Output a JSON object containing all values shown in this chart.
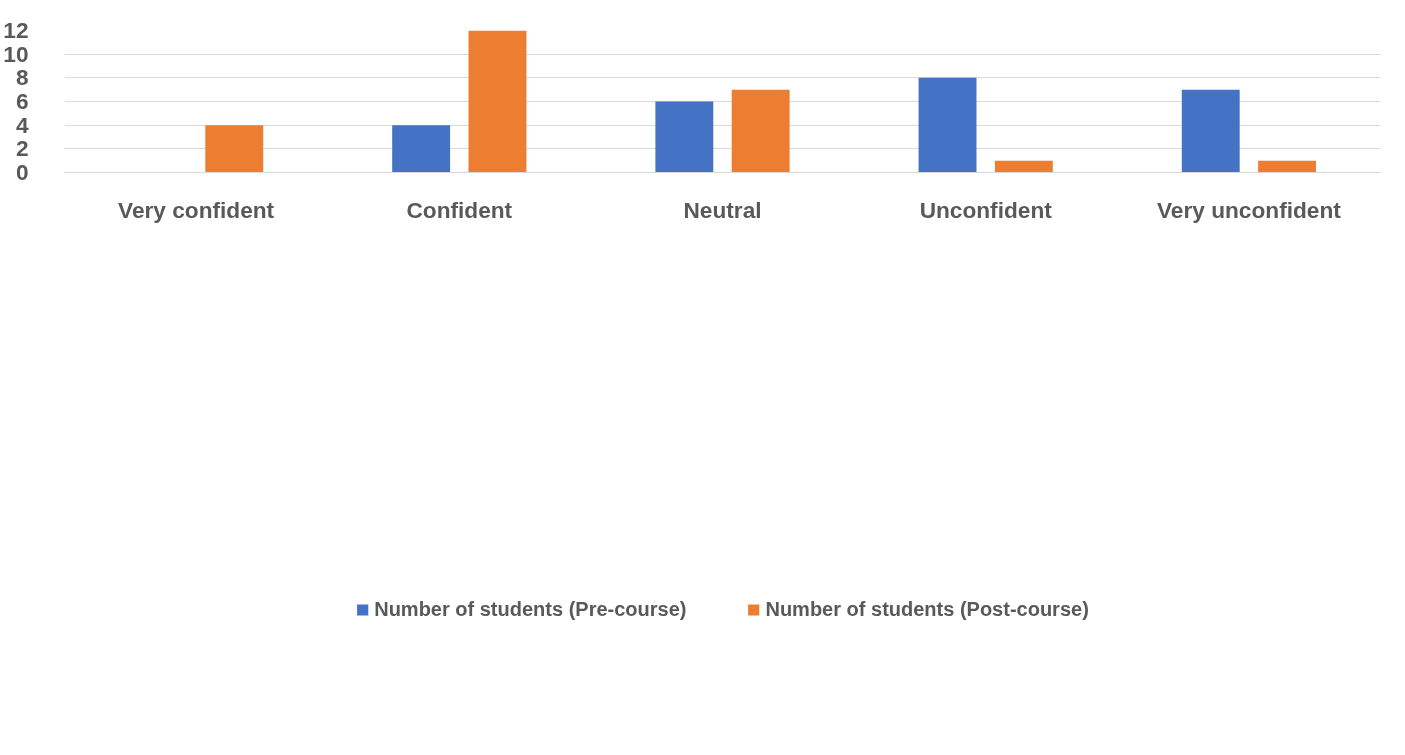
{
  "chart_data": {
    "type": "bar",
    "categories": [
      "Very confident",
      "Confident",
      "Neutral",
      "Unconfident",
      "Very unconfident"
    ],
    "series": [
      {
        "name": "Number of students (Pre-course)",
        "color": "#4472c4",
        "values": [
          0,
          4,
          6,
          8,
          7
        ]
      },
      {
        "name": "Number of students (Post-course)",
        "color": "#ed7d31",
        "values": [
          4,
          12,
          7,
          1,
          1
        ]
      }
    ],
    "ylim": [
      0,
      12
    ],
    "yticks": [
      0,
      2,
      4,
      6,
      8,
      10,
      12
    ],
    "grid": "y",
    "legend": "bottom"
  }
}
